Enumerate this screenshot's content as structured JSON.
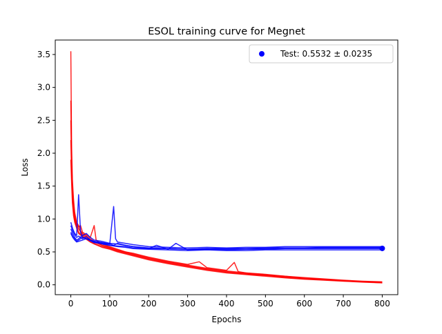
{
  "chart_data": {
    "type": "line",
    "title": "ESOL training curve for Megnet",
    "xlabel": "Epochs",
    "ylabel": "Loss",
    "xlim": [
      -40,
      840
    ],
    "ylim": [
      -0.15,
      3.72
    ],
    "xticks": [
      0,
      100,
      200,
      300,
      400,
      500,
      600,
      700,
      800
    ],
    "yticks": [
      0.0,
      0.5,
      1.0,
      1.5,
      2.0,
      2.5,
      3.0,
      3.5
    ],
    "ytick_labels": [
      "0.0",
      "0.5",
      "1.0",
      "1.5",
      "2.0",
      "2.5",
      "3.0",
      "3.5"
    ],
    "grid": false,
    "legend_position": "top-right",
    "legend": [
      {
        "label": "Test: 0.5532 ± 0.0235",
        "marker": "circle",
        "color": "#0000ff"
      }
    ],
    "test_point": {
      "x": 800,
      "y": 0.5532
    },
    "series": [
      {
        "kind": "train",
        "color": "#ff0000",
        "points": [
          [
            0,
            3.55
          ],
          [
            2,
            2.1
          ],
          [
            4,
            1.6
          ],
          [
            7,
            1.3
          ],
          [
            10,
            1.1
          ],
          [
            15,
            0.95
          ],
          [
            20,
            0.9
          ],
          [
            25,
            0.82
          ],
          [
            30,
            0.78
          ],
          [
            40,
            0.74
          ],
          [
            50,
            0.7
          ],
          [
            60,
            0.66
          ],
          [
            70,
            0.63
          ],
          [
            80,
            0.6
          ],
          [
            90,
            0.58
          ],
          [
            100,
            0.56
          ],
          [
            120,
            0.52
          ],
          [
            140,
            0.49
          ],
          [
            160,
            0.46
          ],
          [
            180,
            0.43
          ],
          [
            200,
            0.4
          ],
          [
            250,
            0.34
          ],
          [
            300,
            0.29
          ],
          [
            350,
            0.24
          ],
          [
            400,
            0.2
          ],
          [
            450,
            0.17
          ],
          [
            500,
            0.15
          ],
          [
            550,
            0.12
          ],
          [
            600,
            0.1
          ],
          [
            650,
            0.08
          ],
          [
            700,
            0.06
          ],
          [
            750,
            0.05
          ],
          [
            800,
            0.04
          ]
        ]
      },
      {
        "kind": "train",
        "color": "#ff0000",
        "points": [
          [
            0,
            2.8
          ],
          [
            2,
            1.9
          ],
          [
            4,
            1.5
          ],
          [
            7,
            1.2
          ],
          [
            10,
            1.05
          ],
          [
            15,
            0.92
          ],
          [
            20,
            0.88
          ],
          [
            25,
            0.9
          ],
          [
            30,
            0.8
          ],
          [
            40,
            0.76
          ],
          [
            50,
            0.72
          ],
          [
            60,
            0.9
          ],
          [
            65,
            0.68
          ],
          [
            80,
            0.62
          ],
          [
            100,
            0.58
          ],
          [
            120,
            0.54
          ],
          [
            140,
            0.5
          ],
          [
            160,
            0.48
          ],
          [
            180,
            0.45
          ],
          [
            200,
            0.42
          ],
          [
            250,
            0.36
          ],
          [
            300,
            0.31
          ],
          [
            330,
            0.35
          ],
          [
            350,
            0.26
          ],
          [
            400,
            0.22
          ],
          [
            420,
            0.34
          ],
          [
            430,
            0.2
          ],
          [
            450,
            0.18
          ],
          [
            500,
            0.16
          ],
          [
            550,
            0.13
          ],
          [
            600,
            0.11
          ],
          [
            650,
            0.09
          ],
          [
            700,
            0.07
          ],
          [
            750,
            0.055
          ],
          [
            800,
            0.045
          ]
        ]
      },
      {
        "kind": "train",
        "color": "#ff0000",
        "points": [
          [
            0,
            2.5
          ],
          [
            2,
            1.8
          ],
          [
            4,
            1.4
          ],
          [
            7,
            1.15
          ],
          [
            10,
            1.0
          ],
          [
            15,
            0.9
          ],
          [
            20,
            0.85
          ],
          [
            30,
            0.76
          ],
          [
            40,
            0.72
          ],
          [
            50,
            0.68
          ],
          [
            60,
            0.65
          ],
          [
            80,
            0.6
          ],
          [
            100,
            0.57
          ],
          [
            120,
            0.53
          ],
          [
            140,
            0.5
          ],
          [
            160,
            0.47
          ],
          [
            180,
            0.44
          ],
          [
            200,
            0.41
          ],
          [
            250,
            0.35
          ],
          [
            300,
            0.3
          ],
          [
            350,
            0.25
          ],
          [
            400,
            0.21
          ],
          [
            450,
            0.18
          ],
          [
            500,
            0.15
          ],
          [
            550,
            0.13
          ],
          [
            600,
            0.1
          ],
          [
            650,
            0.085
          ],
          [
            700,
            0.065
          ],
          [
            750,
            0.05
          ],
          [
            800,
            0.035
          ]
        ]
      },
      {
        "kind": "train",
        "color": "#ff0000",
        "points": [
          [
            0,
            2.2
          ],
          [
            2,
            1.7
          ],
          [
            4,
            1.35
          ],
          [
            7,
            1.1
          ],
          [
            10,
            0.98
          ],
          [
            15,
            0.88
          ],
          [
            20,
            0.8
          ],
          [
            30,
            0.74
          ],
          [
            40,
            0.7
          ],
          [
            50,
            0.66
          ],
          [
            60,
            0.63
          ],
          [
            80,
            0.58
          ],
          [
            100,
            0.55
          ],
          [
            120,
            0.51
          ],
          [
            140,
            0.48
          ],
          [
            160,
            0.45
          ],
          [
            180,
            0.42
          ],
          [
            200,
            0.39
          ],
          [
            250,
            0.33
          ],
          [
            300,
            0.28
          ],
          [
            350,
            0.23
          ],
          [
            400,
            0.19
          ],
          [
            450,
            0.16
          ],
          [
            500,
            0.14
          ],
          [
            550,
            0.11
          ],
          [
            600,
            0.09
          ],
          [
            650,
            0.075
          ],
          [
            700,
            0.06
          ],
          [
            750,
            0.045
          ],
          [
            800,
            0.03
          ]
        ]
      },
      {
        "kind": "train",
        "color": "#ff0000",
        "points": [
          [
            0,
            1.9
          ],
          [
            2,
            1.55
          ],
          [
            4,
            1.25
          ],
          [
            7,
            1.05
          ],
          [
            10,
            0.95
          ],
          [
            15,
            0.86
          ],
          [
            20,
            0.78
          ],
          [
            30,
            0.73
          ],
          [
            40,
            0.69
          ],
          [
            50,
            0.65
          ],
          [
            60,
            0.62
          ],
          [
            80,
            0.57
          ],
          [
            100,
            0.54
          ],
          [
            120,
            0.5
          ],
          [
            140,
            0.47
          ],
          [
            160,
            0.44
          ],
          [
            180,
            0.41
          ],
          [
            200,
            0.38
          ],
          [
            250,
            0.32
          ],
          [
            300,
            0.27
          ],
          [
            350,
            0.22
          ],
          [
            400,
            0.18
          ],
          [
            450,
            0.155
          ],
          [
            500,
            0.13
          ],
          [
            550,
            0.105
          ],
          [
            600,
            0.085
          ],
          [
            650,
            0.07
          ],
          [
            700,
            0.055
          ],
          [
            750,
            0.04
          ],
          [
            800,
            0.03
          ]
        ]
      },
      {
        "kind": "valid",
        "color": "#0000ff",
        "points": [
          [
            0,
            0.95
          ],
          [
            5,
            0.85
          ],
          [
            10,
            0.78
          ],
          [
            15,
            0.75
          ],
          [
            20,
            1.37
          ],
          [
            25,
            0.8
          ],
          [
            30,
            0.72
          ],
          [
            40,
            0.7
          ],
          [
            50,
            0.68
          ],
          [
            60,
            0.66
          ],
          [
            80,
            0.64
          ],
          [
            100,
            0.62
          ],
          [
            110,
            0.6
          ],
          [
            120,
            0.63
          ],
          [
            140,
            0.6
          ],
          [
            160,
            0.58
          ],
          [
            200,
            0.56
          ],
          [
            250,
            0.55
          ],
          [
            300,
            0.54
          ],
          [
            350,
            0.55
          ],
          [
            400,
            0.54
          ],
          [
            450,
            0.55
          ],
          [
            500,
            0.56
          ],
          [
            550,
            0.56
          ],
          [
            600,
            0.56
          ],
          [
            650,
            0.57
          ],
          [
            700,
            0.57
          ],
          [
            750,
            0.57
          ],
          [
            800,
            0.57
          ]
        ]
      },
      {
        "kind": "valid",
        "color": "#0000ff",
        "points": [
          [
            0,
            0.9
          ],
          [
            5,
            0.82
          ],
          [
            10,
            0.76
          ],
          [
            15,
            0.72
          ],
          [
            20,
            0.74
          ],
          [
            30,
            0.7
          ],
          [
            40,
            0.73
          ],
          [
            50,
            0.68
          ],
          [
            60,
            0.66
          ],
          [
            80,
            0.64
          ],
          [
            100,
            0.62
          ],
          [
            110,
            1.19
          ],
          [
            115,
            0.7
          ],
          [
            120,
            0.65
          ],
          [
            140,
            0.63
          ],
          [
            160,
            0.61
          ],
          [
            200,
            0.58
          ],
          [
            250,
            0.57
          ],
          [
            300,
            0.56
          ],
          [
            350,
            0.57
          ],
          [
            400,
            0.56
          ],
          [
            450,
            0.57
          ],
          [
            500,
            0.57
          ],
          [
            550,
            0.58
          ],
          [
            600,
            0.58
          ],
          [
            650,
            0.58
          ],
          [
            700,
            0.58
          ],
          [
            750,
            0.58
          ],
          [
            800,
            0.58
          ]
        ]
      },
      {
        "kind": "valid",
        "color": "#0000ff",
        "points": [
          [
            0,
            0.85
          ],
          [
            5,
            0.78
          ],
          [
            10,
            0.72
          ],
          [
            15,
            0.68
          ],
          [
            20,
            0.7
          ],
          [
            30,
            0.75
          ],
          [
            40,
            0.78
          ],
          [
            50,
            0.72
          ],
          [
            60,
            0.68
          ],
          [
            80,
            0.66
          ],
          [
            100,
            0.63
          ],
          [
            120,
            0.62
          ],
          [
            140,
            0.6
          ],
          [
            160,
            0.58
          ],
          [
            200,
            0.55
          ],
          [
            220,
            0.6
          ],
          [
            250,
            0.54
          ],
          [
            270,
            0.63
          ],
          [
            300,
            0.53
          ],
          [
            350,
            0.54
          ],
          [
            400,
            0.53
          ],
          [
            450,
            0.54
          ],
          [
            500,
            0.54
          ],
          [
            550,
            0.55
          ],
          [
            600,
            0.55
          ],
          [
            650,
            0.55
          ],
          [
            700,
            0.55
          ],
          [
            750,
            0.55
          ],
          [
            800,
            0.55
          ]
        ]
      },
      {
        "kind": "valid",
        "color": "#0000ff",
        "points": [
          [
            0,
            0.8
          ],
          [
            5,
            0.74
          ],
          [
            10,
            0.7
          ],
          [
            15,
            0.66
          ],
          [
            20,
            0.68
          ],
          [
            30,
            0.72
          ],
          [
            40,
            0.7
          ],
          [
            50,
            0.68
          ],
          [
            60,
            0.65
          ],
          [
            80,
            0.62
          ],
          [
            100,
            0.6
          ],
          [
            120,
            0.58
          ],
          [
            140,
            0.57
          ],
          [
            160,
            0.55
          ],
          [
            200,
            0.54
          ],
          [
            250,
            0.53
          ],
          [
            300,
            0.52
          ],
          [
            350,
            0.53
          ],
          [
            400,
            0.52
          ],
          [
            450,
            0.52
          ],
          [
            500,
            0.53
          ],
          [
            550,
            0.53
          ],
          [
            600,
            0.53
          ],
          [
            650,
            0.53
          ],
          [
            700,
            0.53
          ],
          [
            750,
            0.53
          ],
          [
            800,
            0.53
          ]
        ]
      },
      {
        "kind": "valid",
        "color": "#0000ff",
        "points": [
          [
            0,
            0.78
          ],
          [
            5,
            0.72
          ],
          [
            10,
            0.68
          ],
          [
            15,
            0.65
          ],
          [
            20,
            0.66
          ],
          [
            30,
            0.68
          ],
          [
            40,
            0.7
          ],
          [
            50,
            0.67
          ],
          [
            60,
            0.64
          ],
          [
            80,
            0.63
          ],
          [
            100,
            0.6
          ],
          [
            120,
            0.59
          ],
          [
            140,
            0.58
          ],
          [
            160,
            0.56
          ],
          [
            200,
            0.55
          ],
          [
            250,
            0.55
          ],
          [
            300,
            0.54
          ],
          [
            350,
            0.55
          ],
          [
            400,
            0.55
          ],
          [
            450,
            0.55
          ],
          [
            500,
            0.55
          ],
          [
            550,
            0.56
          ],
          [
            600,
            0.56
          ],
          [
            650,
            0.56
          ],
          [
            700,
            0.56
          ],
          [
            750,
            0.56
          ],
          [
            800,
            0.56
          ]
        ]
      }
    ]
  }
}
